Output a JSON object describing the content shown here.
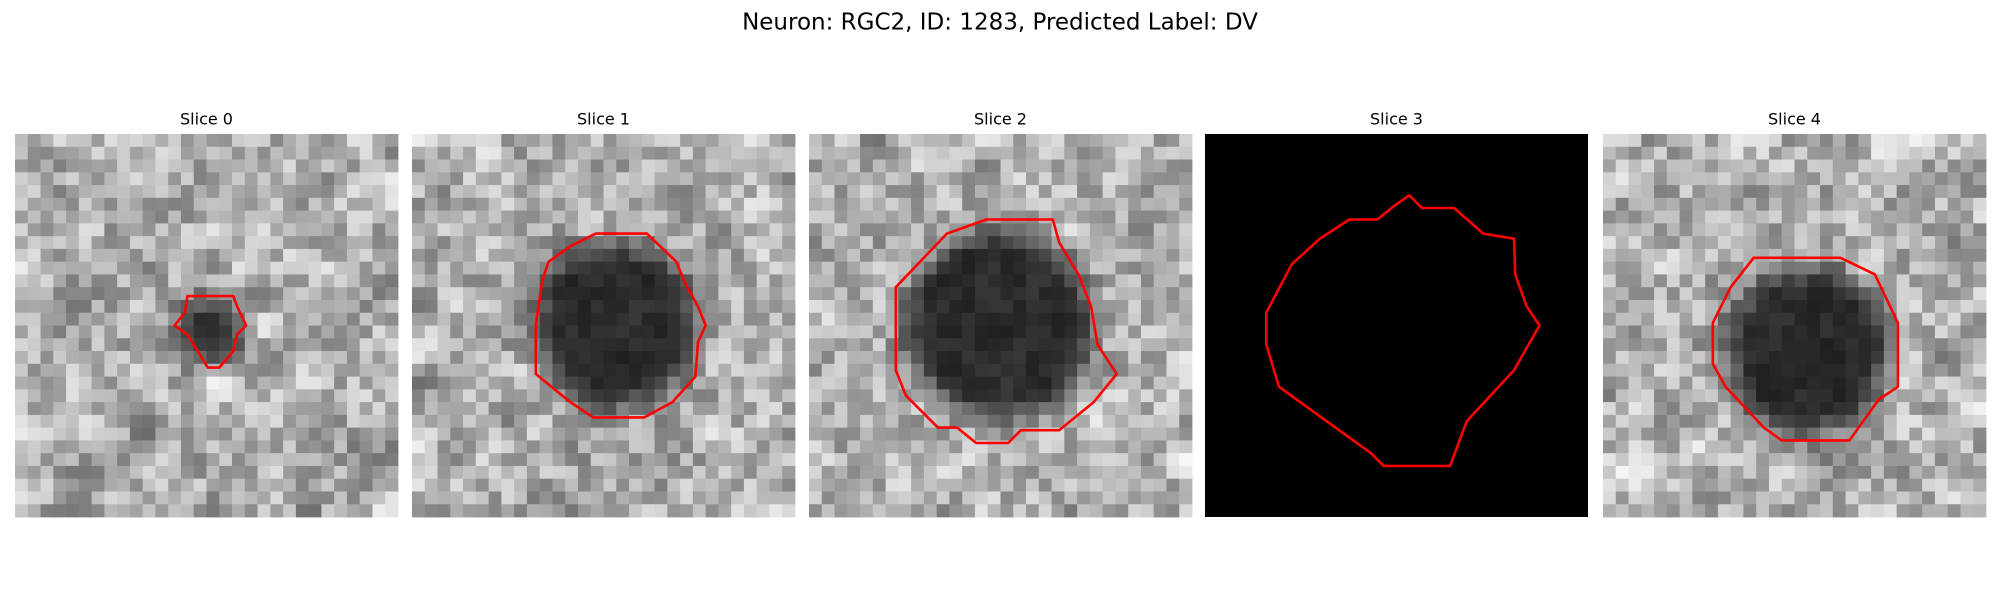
{
  "title": "Neuron: RGC2, ID: 1283, Predicted Label: DV",
  "panels": [
    {
      "title": "Slice 0"
    },
    {
      "title": "Slice 1"
    },
    {
      "title": "Slice 2"
    },
    {
      "title": "Slice 3"
    },
    {
      "title": "Slice 4"
    }
  ]
}
